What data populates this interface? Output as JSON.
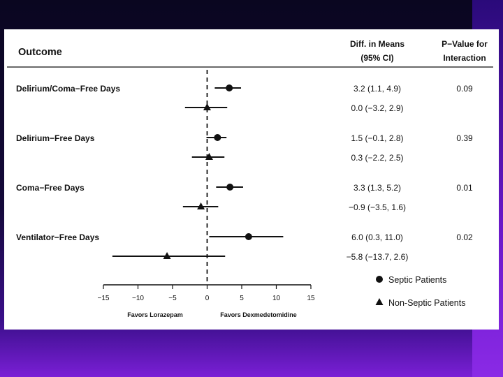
{
  "chart_data": {
    "type": "forest",
    "header": {
      "outcome_col": "Outcome",
      "diff_col_line1": "Diff. in Means",
      "diff_col_line2": "(95% CI)",
      "p_col_line1": "P−Value for",
      "p_col_line2": "Interaction"
    },
    "xlim": [
      -15,
      15
    ],
    "x_ticks": [
      "−15",
      "−10",
      "−5",
      "0",
      "5",
      "10",
      "15"
    ],
    "x_tick_values": [
      -15,
      -10,
      -5,
      0,
      5,
      10,
      15
    ],
    "xlabel_left": "Favors Lorazepam",
    "xlabel_right": "Favors Dexmedetomidine",
    "series": [
      {
        "name": "Septic Patients",
        "marker": "circle"
      },
      {
        "name": "Non-Septic Patients",
        "marker": "triangle"
      }
    ],
    "outcomes": [
      {
        "label": "Delirium/Coma−Free Days",
        "p_value": "0.09",
        "rows": [
          {
            "series": 0,
            "mean": 3.2,
            "low": 1.1,
            "high": 4.9,
            "text": "3.2 (1.1, 4.9)"
          },
          {
            "series": 1,
            "mean": 0.0,
            "low": -3.2,
            "high": 2.9,
            "text": "0.0 (−3.2, 2.9)"
          }
        ]
      },
      {
        "label": "Delirium−Free Days",
        "p_value": "0.39",
        "rows": [
          {
            "series": 0,
            "mean": 1.5,
            "low": -0.1,
            "high": 2.8,
            "text": "1.5 (−0.1, 2.8)"
          },
          {
            "series": 1,
            "mean": 0.3,
            "low": -2.2,
            "high": 2.5,
            "text": "0.3 (−2.2, 2.5)"
          }
        ]
      },
      {
        "label": "Coma−Free Days",
        "p_value": "0.01",
        "rows": [
          {
            "series": 0,
            "mean": 3.3,
            "low": 1.3,
            "high": 5.2,
            "text": "3.3 (1.3, 5.2)"
          },
          {
            "series": 1,
            "mean": -0.9,
            "low": -3.5,
            "high": 1.6,
            "text": "−0.9 (−3.5, 1.6)"
          }
        ]
      },
      {
        "label": "Ventilator−Free Days",
        "p_value": "0.02",
        "rows": [
          {
            "series": 0,
            "mean": 6.0,
            "low": 0.3,
            "high": 11.0,
            "text": "6.0 (0.3, 11.0)"
          },
          {
            "series": 1,
            "mean": -5.8,
            "low": -13.7,
            "high": 2.6,
            "text": "−5.8 (−13.7, 2.6)"
          }
        ]
      }
    ],
    "reference_line": 0,
    "grid": false,
    "legend_placement": "bottom-right"
  }
}
